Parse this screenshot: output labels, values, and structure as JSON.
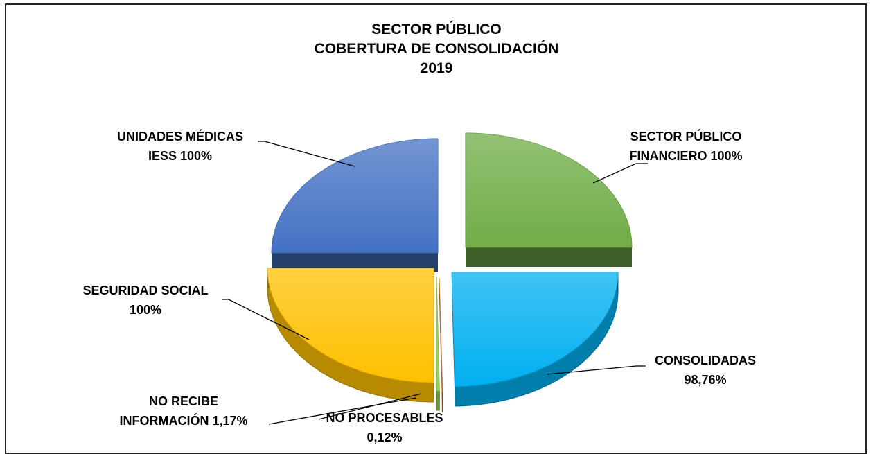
{
  "chart_data": {
    "type": "pie",
    "title_lines": [
      "SECTOR PÚBLICO",
      "COBERTURA DE CONSOLIDACIÓN",
      "2019"
    ],
    "slices": [
      {
        "label_lines": [
          "SECTOR PÚBLICO",
          "FINANCIERO 100%"
        ],
        "value": 25,
        "color": "#70AD47"
      },
      {
        "label_lines": [
          "CONSOLIDADAS",
          "98,76%"
        ],
        "value": 24.69,
        "color": "#00B0F0"
      },
      {
        "label_lines": [
          "NO PROCESABLES",
          "0,12%"
        ],
        "value": 0.03,
        "color": "#E07B39"
      },
      {
        "label_lines": [
          "NO RECIBE",
          "INFORMACIÓN 1,17%"
        ],
        "value": 0.29,
        "color": "#92D050"
      },
      {
        "label_lines": [
          "SEGURIDAD SOCIAL",
          "100%"
        ],
        "value": 25,
        "color": "#FFC000"
      },
      {
        "label_lines": [
          "UNIDADES MÉDICAS",
          "IESS 100%"
        ],
        "value": 25,
        "color": "#4472C4"
      }
    ],
    "style": "3d-exploded-pie"
  }
}
